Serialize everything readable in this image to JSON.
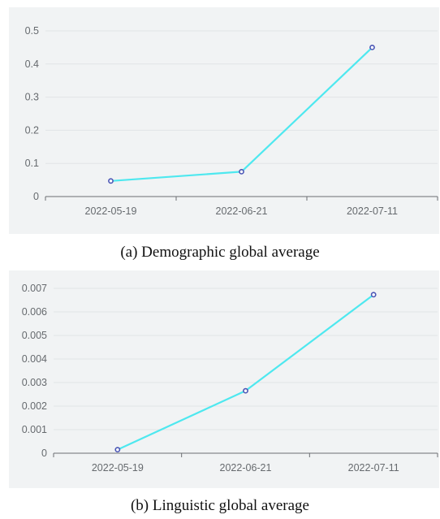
{
  "chart_data": [
    {
      "type": "line",
      "caption": "(a) Demographic global average",
      "categories": [
        "2022-05-19",
        "2022-06-21",
        "2022-07-11"
      ],
      "series": [
        {
          "values": [
            0.047,
            0.075,
            0.45
          ]
        }
      ],
      "y_ticks": [
        "0",
        "0.1",
        "0.2",
        "0.3",
        "0.4",
        "0.5"
      ],
      "ylim": [
        0,
        0.5
      ],
      "grid": true,
      "colors": {
        "line": "#4ee8ef",
        "marker_stroke": "#4b56b5",
        "marker_fill": "#ffffff",
        "grid": "#e1e4e6",
        "axis": "#6b6e72",
        "tick_text": "#666a6e"
      }
    },
    {
      "type": "line",
      "caption": "(b) Linguistic global average",
      "categories": [
        "2022-05-19",
        "2022-06-21",
        "2022-07-11"
      ],
      "series": [
        {
          "values": [
            0.00015,
            0.00265,
            0.00673
          ]
        }
      ],
      "y_ticks": [
        "0",
        "0.001",
        "0.002",
        "0.003",
        "0.004",
        "0.005",
        "0.006",
        "0.007"
      ],
      "ylim": [
        0,
        0.007
      ],
      "grid": true,
      "colors": {
        "line": "#4ee8ef",
        "marker_stroke": "#4b56b5",
        "marker_fill": "#ffffff",
        "grid": "#e1e4e6",
        "axis": "#6b6e72",
        "tick_text": "#666a6e"
      }
    }
  ]
}
